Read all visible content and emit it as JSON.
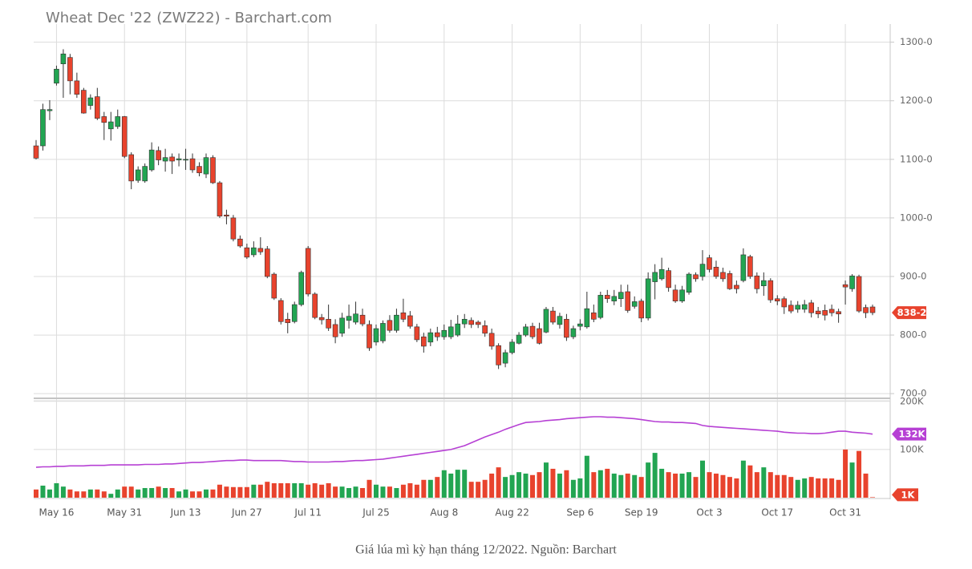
{
  "chart_data": {
    "type": "candlestick",
    "title": "Wheat Dec '22 (ZWZ22) - Barchart.com",
    "caption": "Giá lúa mì kỳ hạn tháng 12/2022. Nguồn: Barchart",
    "categories": [
      null,
      null,
      null,
      "May 16",
      null,
      null,
      null,
      null,
      null,
      null,
      null,
      null,
      null,
      "May 31",
      null,
      null,
      null,
      null,
      null,
      null,
      null,
      null,
      "Jun 13",
      null,
      null,
      null,
      null,
      null,
      null,
      null,
      null,
      "Jun 27",
      null,
      null,
      null,
      null,
      null,
      null,
      null,
      null,
      "Jul 11",
      null,
      null,
      null,
      null,
      null,
      null,
      null,
      null,
      null,
      "Jul 25",
      null,
      null,
      null,
      null,
      null,
      null,
      null,
      null,
      null,
      "Aug 8",
      null,
      null,
      null,
      null,
      null,
      null,
      null,
      null,
      null,
      "Aug 22",
      null,
      null,
      null,
      null,
      null,
      null,
      null,
      null,
      null,
      "Sep 6",
      null,
      null,
      null,
      null,
      null,
      null,
      null,
      null,
      "Sep 19",
      null,
      null,
      null,
      null,
      null,
      null,
      null,
      null,
      null,
      "Oct 3",
      null,
      null,
      null,
      null,
      null,
      null,
      null,
      null,
      null,
      "Oct 17",
      null,
      null,
      null,
      null,
      null,
      null,
      null,
      null,
      null,
      "Oct 31",
      null,
      null,
      null,
      null
    ],
    "open": [
      1123,
      1123,
      1183,
      1230,
      1263,
      1274,
      1234,
      1218,
      1192,
      1207,
      1173,
      1152,
      1156,
      1173,
      1108,
      1064,
      1063,
      1082,
      1115,
      1097,
      1104,
      1099,
      1099,
      1101,
      1088,
      1075,
      1103,
      1060,
      1005,
      1000,
      964,
      949,
      937,
      948,
      947,
      904,
      859,
      827,
      823,
      852,
      948,
      870,
      830,
      827,
      818,
      803,
      825,
      822,
      834,
      818,
      788,
      790,
      825,
      808,
      838,
      833,
      814,
      797,
      788,
      804,
      797,
      797,
      800,
      819,
      825,
      822,
      816,
      803,
      782,
      752,
      770,
      786,
      800,
      815,
      811,
      805,
      841,
      818,
      827,
      797,
      815,
      814,
      838,
      830,
      868,
      858,
      862,
      874,
      849,
      858,
      829,
      891,
      896,
      910,
      877,
      858,
      873,
      903,
      900,
      932,
      916,
      907,
      905,
      885,
      893,
      934,
      901,
      884,
      893,
      862,
      862,
      851,
      844,
      844,
      855,
      841,
      842,
      844,
      840,
      886,
      879,
      900,
      847,
      848
    ],
    "high": [
      1133,
      1195,
      1201,
      1260,
      1288,
      1280,
      1248,
      1222,
      1211,
      1222,
      1181,
      1181,
      1185,
      1174,
      1112,
      1088,
      1093,
      1129,
      1122,
      1118,
      1110,
      1110,
      1118,
      1110,
      1095,
      1110,
      1107,
      1063,
      1014,
      1005,
      970,
      956,
      960,
      967,
      952,
      907,
      863,
      838,
      857,
      910,
      952,
      873,
      836,
      852,
      827,
      838,
      852,
      857,
      845,
      825,
      818,
      825,
      834,
      845,
      862,
      841,
      819,
      804,
      811,
      814,
      818,
      826,
      834,
      836,
      830,
      825,
      825,
      811,
      786,
      775,
      793,
      805,
      819,
      821,
      821,
      848,
      848,
      838,
      836,
      816,
      827,
      874,
      852,
      874,
      877,
      877,
      886,
      886,
      866,
      862,
      907,
      921,
      932,
      915,
      886,
      884,
      907,
      907,
      945,
      937,
      927,
      915,
      910,
      893,
      948,
      937,
      907,
      907,
      897,
      868,
      866,
      859,
      858,
      860,
      860,
      848,
      852,
      852,
      845,
      893,
      904,
      903,
      852,
      852
    ],
    "low": [
      1100,
      1115,
      1167,
      1226,
      1205,
      1211,
      1205,
      1178,
      1185,
      1167,
      1133,
      1132,
      1152,
      1102,
      1049,
      1060,
      1060,
      1079,
      1090,
      1079,
      1075,
      1088,
      1082,
      1077,
      1071,
      1068,
      1058,
      1000,
      989,
      960,
      949,
      930,
      933,
      937,
      897,
      860,
      818,
      803,
      820,
      849,
      866,
      827,
      818,
      807,
      786,
      797,
      811,
      818,
      815,
      773,
      782,
      786,
      804,
      804,
      822,
      811,
      788,
      770,
      781,
      790,
      792,
      793,
      797,
      812,
      812,
      812,
      797,
      775,
      742,
      745,
      767,
      784,
      797,
      793,
      784,
      803,
      818,
      811,
      790,
      793,
      808,
      811,
      822,
      827,
      855,
      851,
      848,
      838,
      845,
      822,
      825,
      861,
      893,
      874,
      855,
      855,
      869,
      891,
      893,
      907,
      896,
      891,
      877,
      871,
      890,
      896,
      871,
      867,
      855,
      851,
      836,
      837,
      838,
      838,
      830,
      829,
      825,
      832,
      821,
      852,
      874,
      838,
      829,
      834
    ],
    "close": [
      1102,
      1185,
      1185,
      1254,
      1280,
      1234,
      1211,
      1179,
      1205,
      1170,
      1163,
      1164,
      1173,
      1105,
      1063,
      1082,
      1088,
      1116,
      1099,
      1103,
      1097,
      1101,
      1100,
      1082,
      1077,
      1103,
      1060,
      1003,
      1003,
      964,
      952,
      933,
      949,
      942,
      900,
      863,
      823,
      821,
      852,
      907,
      870,
      830,
      826,
      812,
      797,
      829,
      832,
      836,
      819,
      778,
      811,
      820,
      808,
      834,
      827,
      815,
      792,
      781,
      804,
      797,
      808,
      814,
      819,
      827,
      818,
      818,
      803,
      781,
      749,
      770,
      788,
      800,
      814,
      797,
      786,
      844,
      822,
      832,
      796,
      811,
      819,
      845,
      827,
      868,
      862,
      866,
      873,
      842,
      857,
      829,
      896,
      907,
      912,
      881,
      858,
      877,
      904,
      896,
      921,
      912,
      900,
      896,
      879,
      879,
      937,
      900,
      879,
      893,
      860,
      858,
      848,
      841,
      851,
      852,
      838,
      836,
      834,
      838,
      836,
      882,
      901,
      841,
      838,
      838.25
    ],
    "last_close_label": "838-2",
    "up_color": "#22a552",
    "down_color": "#e8432d",
    "ylim": [
      692,
      1331
    ],
    "yticks": [
      {
        "value": 700,
        "label": "700-0"
      },
      {
        "value": 800,
        "label": "800-0"
      },
      {
        "value": 900,
        "label": "900-0"
      },
      {
        "value": 1000,
        "label": "1000-0"
      },
      {
        "value": 1100,
        "label": "1100-0"
      },
      {
        "value": 1200,
        "label": "1200-0"
      },
      {
        "value": 1300,
        "label": "1300-0"
      }
    ],
    "grid": true,
    "volume": {
      "values": [
        17000,
        25000,
        17000,
        30000,
        23000,
        17000,
        13000,
        13000,
        17000,
        17000,
        13000,
        8000,
        17000,
        23000,
        23000,
        17000,
        20000,
        20000,
        23000,
        20000,
        20000,
        13000,
        17000,
        13000,
        13000,
        17000,
        17000,
        27000,
        23000,
        22000,
        22000,
        22000,
        27000,
        27000,
        33000,
        30000,
        30000,
        30000,
        30000,
        30000,
        27000,
        30000,
        27000,
        30000,
        23000,
        23000,
        20000,
        23000,
        20000,
        37000,
        27000,
        23000,
        23000,
        20000,
        27000,
        30000,
        27000,
        37000,
        37000,
        43000,
        57000,
        50000,
        58000,
        58000,
        33000,
        33000,
        37000,
        50000,
        63000,
        43000,
        47000,
        53000,
        50000,
        47000,
        53000,
        73000,
        60000,
        50000,
        57000,
        37000,
        40000,
        87000,
        53000,
        57000,
        60000,
        50000,
        47000,
        50000,
        47000,
        43000,
        73000,
        93000,
        60000,
        53000,
        50000,
        50000,
        53000,
        43000,
        77000,
        53000,
        50000,
        47000,
        43000,
        40000,
        77000,
        67000,
        53000,
        63000,
        53000,
        47000,
        47000,
        43000,
        37000,
        40000,
        43000,
        40000,
        40000,
        40000,
        37000,
        100000,
        73000,
        97000,
        50000,
        1000
      ],
      "last_label": "1K",
      "ylim": [
        0,
        203000
      ],
      "yticks": [
        {
          "value": 100000,
          "label": "100K"
        },
        {
          "value": 200000,
          "label": "200K"
        }
      ]
    },
    "open_interest": {
      "color": "#b640d4",
      "values": [
        63000,
        64000,
        64000,
        65000,
        65000,
        66000,
        66000,
        66000,
        67000,
        67000,
        67000,
        68000,
        68000,
        68000,
        68000,
        68000,
        69000,
        69000,
        69000,
        70000,
        70000,
        71000,
        72000,
        73000,
        73000,
        74000,
        75000,
        76000,
        77000,
        77000,
        78000,
        78000,
        77000,
        77000,
        77000,
        77000,
        77000,
        76000,
        75000,
        75000,
        74000,
        74000,
        74000,
        74000,
        75000,
        75000,
        76000,
        77000,
        77000,
        78000,
        79000,
        80000,
        82000,
        84000,
        86000,
        88000,
        90000,
        92000,
        94000,
        96000,
        98000,
        100000,
        104000,
        108000,
        114000,
        120000,
        126000,
        131000,
        136000,
        142000,
        147000,
        152000,
        156000,
        157000,
        158000,
        160000,
        161000,
        162000,
        164000,
        165000,
        166000,
        167000,
        168000,
        168000,
        167000,
        167000,
        166000,
        165000,
        164000,
        162000,
        160000,
        158000,
        157000,
        157000,
        156000,
        156000,
        155000,
        154000,
        150000,
        148000,
        147000,
        146000,
        145000,
        144000,
        143000,
        142000,
        141000,
        140000,
        139000,
        138000,
        136000,
        135000,
        134000,
        134000,
        133000,
        133000,
        134000,
        136000,
        138000,
        138000,
        136000,
        135000,
        134000,
        132000
      ],
      "last_label": "132K"
    }
  }
}
